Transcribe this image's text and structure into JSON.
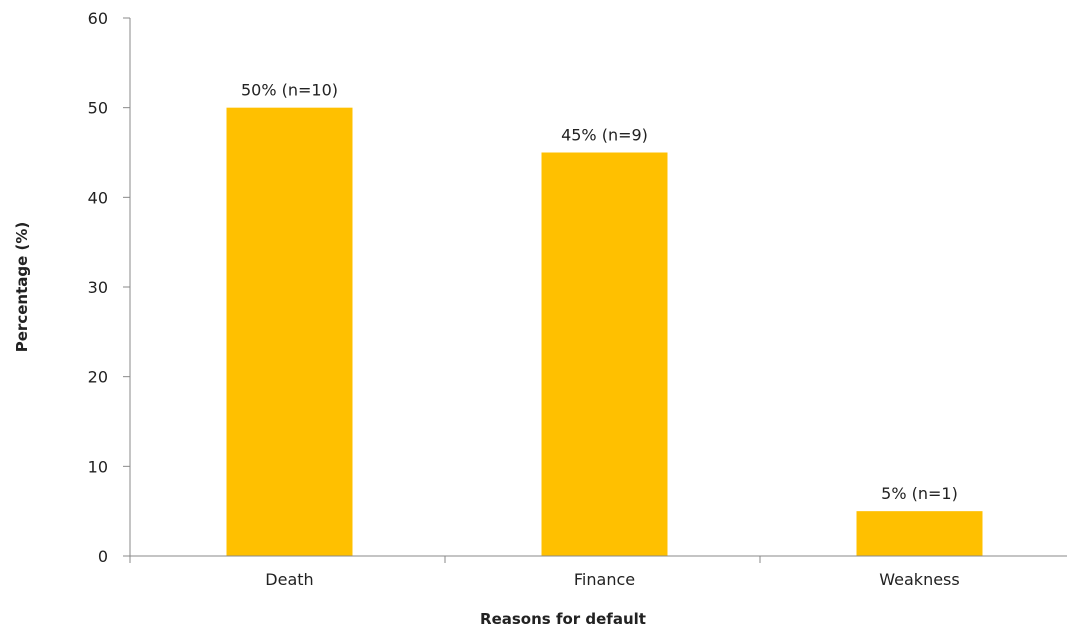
{
  "chart_data": {
    "type": "bar",
    "title": "",
    "xlabel": "Reasons for default",
    "ylabel": "Percentage (%)",
    "categories": [
      "Death",
      "Finance",
      "Weakness"
    ],
    "values": [
      50,
      45,
      5
    ],
    "data_labels": [
      "50% (n=10)",
      "45% (n=9)",
      "5% (n=1)"
    ],
    "ylim": [
      0,
      60
    ],
    "yticks": [
      0,
      10,
      20,
      30,
      40,
      50,
      60
    ],
    "ytick_labels": [
      "0",
      "10",
      "20",
      "30",
      "40",
      "50",
      "60"
    ],
    "bar_color": "#FFC000",
    "axis_color": "#888888",
    "grid": false,
    "legend": "none"
  }
}
